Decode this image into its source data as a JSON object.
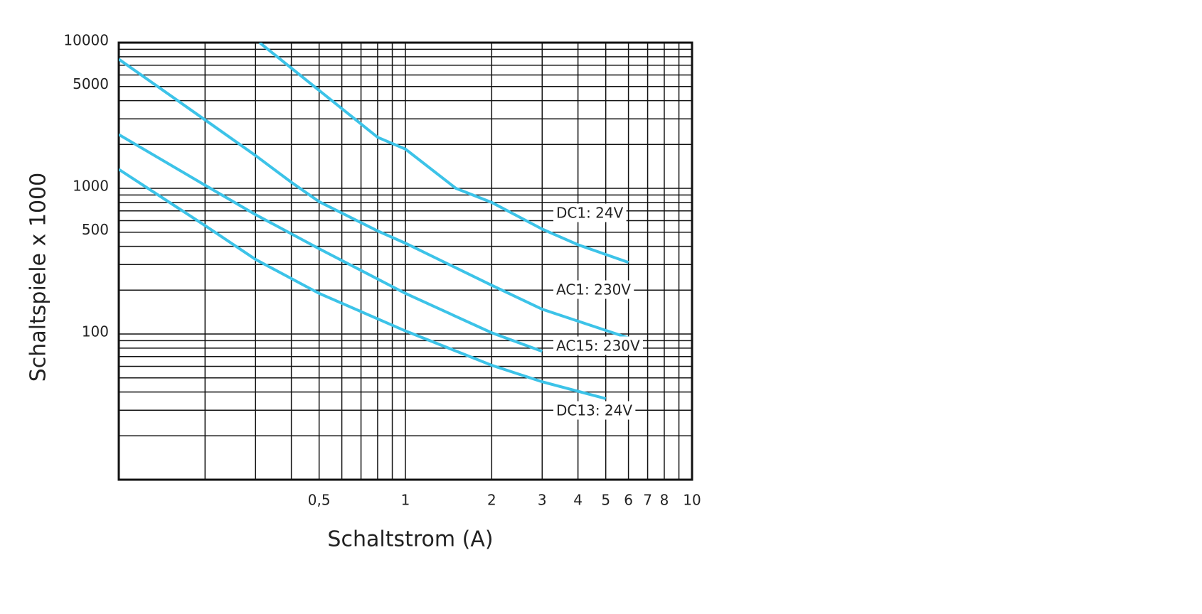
{
  "chart_data": {
    "type": "line",
    "x_label": "Schaltstrom (A)",
    "y_label": "Schaltspiele x 1000",
    "x_log": true,
    "y_log": true,
    "grid": true,
    "xlim": [
      0.1,
      10
    ],
    "ylim": [
      10,
      10000
    ],
    "xticks": [
      {
        "value": 0.5,
        "label": "0,5"
      },
      1,
      2,
      3,
      4,
      5,
      6,
      7,
      8,
      10
    ],
    "x_minor_grid": [
      0.2,
      0.3,
      0.4,
      0.6,
      0.7,
      0.8,
      0.9,
      9
    ],
    "yticks": [
      100,
      500,
      1000,
      5000,
      10000
    ],
    "y_minor_grid": [
      20,
      30,
      40,
      50,
      60,
      70,
      80,
      90,
      200,
      300,
      400,
      600,
      700,
      800,
      900,
      2000,
      3000,
      4000,
      6000,
      7000,
      8000,
      9000
    ],
    "series": [
      {
        "name": "DC1: 24V",
        "color": "#3cc3e8",
        "x": [
          0.31,
          0.5,
          0.8,
          1,
          1.5,
          2,
          3,
          4,
          6
        ],
        "values": [
          10000,
          4700,
          2240,
          1860,
          1000,
          800,
          525,
          410,
          310
        ]
      },
      {
        "name": "AC1: 230V",
        "color": "#3cc3e8",
        "x": [
          0.1,
          0.2,
          0.3,
          0.4,
          0.5,
          0.8,
          1,
          2,
          3,
          6
        ],
        "values": [
          7700,
          2950,
          1680,
          1100,
          810,
          510,
          420,
          216,
          148,
          94
        ]
      },
      {
        "name": "AC15: 230V",
        "color": "#3cc3e8",
        "x": [
          0.1,
          0.2,
          0.3,
          0.5,
          1,
          2,
          3
        ],
        "values": [
          2340,
          1050,
          660,
          385,
          190,
          102,
          76
        ]
      },
      {
        "name": "DC13: 24V",
        "color": "#3cc3e8",
        "x": [
          0.1,
          0.2,
          0.3,
          0.5,
          1,
          2,
          3,
          5
        ],
        "values": [
          1350,
          555,
          325,
          190,
          105,
          61,
          47,
          36
        ]
      }
    ]
  }
}
